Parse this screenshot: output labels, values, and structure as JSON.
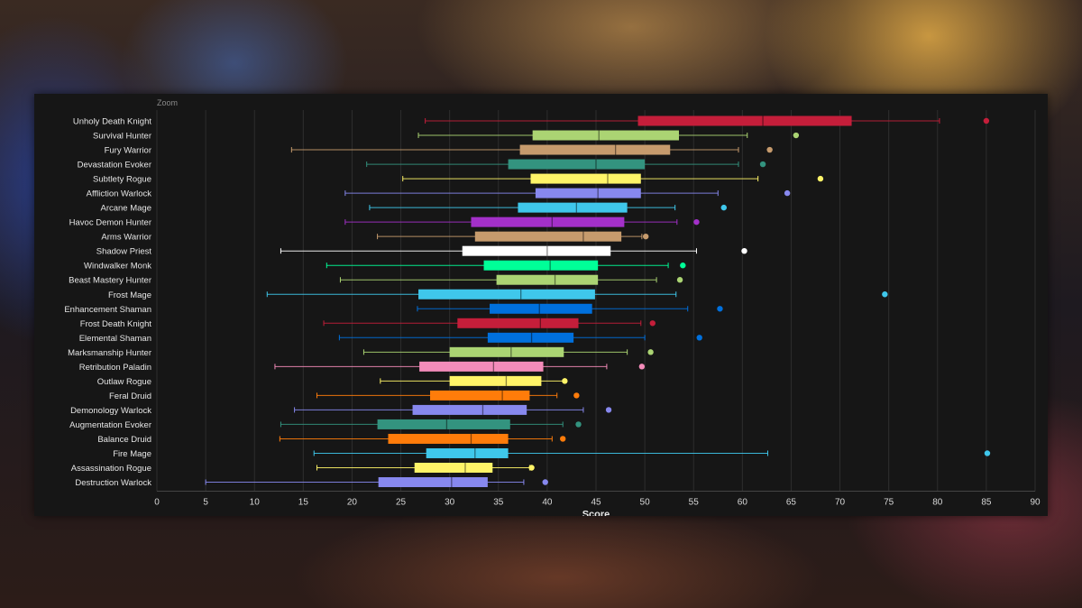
{
  "chart_data": {
    "type": "boxplot",
    "zoom_label": "Zoom",
    "xlabel": "Score",
    "xlim": [
      0,
      90
    ],
    "x_ticks": [
      0,
      5,
      10,
      15,
      20,
      25,
      30,
      35,
      40,
      45,
      50,
      55,
      60,
      65,
      70,
      75,
      80,
      85,
      90
    ],
    "grid": "vertical",
    "series": [
      {
        "label": "Unholy Death Knight",
        "color": "#c41e3a",
        "whisker_low": 27.5,
        "q1": 49.3,
        "median": 62.1,
        "q3": 71.2,
        "whisker_high": 80.2,
        "outlier": 85.0
      },
      {
        "label": "Survival Hunter",
        "color": "#abd473",
        "whisker_low": 26.8,
        "q1": 38.5,
        "median": 45.3,
        "q3": 53.5,
        "whisker_high": 60.5,
        "outlier": 65.5
      },
      {
        "label": "Fury Warrior",
        "color": "#c69b6d",
        "whisker_low": 13.8,
        "q1": 37.2,
        "median": 47.0,
        "q3": 52.6,
        "whisker_high": 59.6,
        "outlier": 62.8
      },
      {
        "label": "Devastation Evoker",
        "color": "#33937f",
        "whisker_low": 21.5,
        "q1": 36.0,
        "median": 45.0,
        "q3": 50.0,
        "whisker_high": 59.6,
        "outlier": 62.1
      },
      {
        "label": "Subtlety Rogue",
        "color": "#fff468",
        "whisker_low": 25.2,
        "q1": 38.3,
        "median": 46.2,
        "q3": 49.6,
        "whisker_high": 61.6,
        "outlier": 68.0
      },
      {
        "label": "Affliction Warlock",
        "color": "#8788ee",
        "whisker_low": 19.3,
        "q1": 38.8,
        "median": 45.2,
        "q3": 49.6,
        "whisker_high": 57.5,
        "outlier": 64.6
      },
      {
        "label": "Arcane Mage",
        "color": "#3fc7eb",
        "whisker_low": 21.8,
        "q1": 37.0,
        "median": 43.0,
        "q3": 48.2,
        "whisker_high": 53.1,
        "outlier": 58.1
      },
      {
        "label": "Havoc Demon Hunter",
        "color": "#a330c9",
        "whisker_low": 19.3,
        "q1": 32.2,
        "median": 40.5,
        "q3": 47.9,
        "whisker_high": 53.3,
        "outlier": 55.3
      },
      {
        "label": "Arms Warrior",
        "color": "#c69b6d",
        "whisker_low": 22.6,
        "q1": 32.6,
        "median": 43.7,
        "q3": 47.6,
        "whisker_high": 49.7,
        "outlier": 50.1
      },
      {
        "label": "Shadow Priest",
        "color": "#ffffff",
        "whisker_low": 12.7,
        "q1": 31.3,
        "median": 40.0,
        "q3": 46.5,
        "whisker_high": 55.3,
        "outlier": 60.2
      },
      {
        "label": "Windwalker Monk",
        "color": "#00ff98",
        "whisker_low": 17.4,
        "q1": 33.5,
        "median": 40.3,
        "q3": 45.2,
        "whisker_high": 52.4,
        "outlier": 53.9
      },
      {
        "label": "Beast Mastery Hunter",
        "color": "#abd473",
        "whisker_low": 18.8,
        "q1": 34.8,
        "median": 40.8,
        "q3": 45.2,
        "whisker_high": 51.2,
        "outlier": 53.6
      },
      {
        "label": "Frost Mage",
        "color": "#3fc7eb",
        "whisker_low": 11.3,
        "q1": 26.8,
        "median": 37.3,
        "q3": 44.9,
        "whisker_high": 53.2,
        "outlier": 74.6
      },
      {
        "label": "Enhancement Shaman",
        "color": "#0070dd",
        "whisker_low": 26.7,
        "q1": 34.1,
        "median": 39.2,
        "q3": 44.6,
        "whisker_high": 54.4,
        "outlier": 57.7
      },
      {
        "label": "Frost Death Knight",
        "color": "#c41e3a",
        "whisker_low": 17.1,
        "q1": 30.8,
        "median": 39.3,
        "q3": 43.2,
        "whisker_high": 49.6,
        "outlier": 50.8
      },
      {
        "label": "Elemental Shaman",
        "color": "#0070dd",
        "whisker_low": 18.7,
        "q1": 33.9,
        "median": 38.4,
        "q3": 42.7,
        "whisker_high": 50.0,
        "outlier": 55.6
      },
      {
        "label": "Marksmanship Hunter",
        "color": "#abd473",
        "whisker_low": 21.2,
        "q1": 30.0,
        "median": 36.3,
        "q3": 41.7,
        "whisker_high": 48.2,
        "outlier": 50.6
      },
      {
        "label": "Retribution Paladin",
        "color": "#f48cba",
        "whisker_low": 12.1,
        "q1": 26.9,
        "median": 34.5,
        "q3": 39.6,
        "whisker_high": 46.1,
        "outlier": 49.7
      },
      {
        "label": "Outlaw Rogue",
        "color": "#fff468",
        "whisker_low": 22.9,
        "q1": 30.0,
        "median": 35.8,
        "q3": 39.4,
        "whisker_high": 41.8,
        "outlier": 41.8
      },
      {
        "label": "Feral Druid",
        "color": "#ff7c0a",
        "whisker_low": 16.4,
        "q1": 28.0,
        "median": 35.4,
        "q3": 38.2,
        "whisker_high": 41.0,
        "outlier": 43.0
      },
      {
        "label": "Demonology Warlock",
        "color": "#8788ee",
        "whisker_low": 14.1,
        "q1": 26.2,
        "median": 33.4,
        "q3": 37.9,
        "whisker_high": 43.7,
        "outlier": 46.3
      },
      {
        "label": "Augmentation Evoker",
        "color": "#33937f",
        "whisker_low": 12.7,
        "q1": 22.6,
        "median": 29.7,
        "q3": 36.2,
        "whisker_high": 41.6,
        "outlier": 43.2
      },
      {
        "label": "Balance Druid",
        "color": "#ff7c0a",
        "whisker_low": 12.6,
        "q1": 23.7,
        "median": 32.2,
        "q3": 36.0,
        "whisker_high": 40.5,
        "outlier": 41.6
      },
      {
        "label": "Fire Mage",
        "color": "#3fc7eb",
        "whisker_low": 16.1,
        "q1": 27.6,
        "median": 32.6,
        "q3": 36.0,
        "whisker_high": 62.6,
        "outlier": 85.1
      },
      {
        "label": "Assassination Rogue",
        "color": "#fff468",
        "whisker_low": 16.4,
        "q1": 26.4,
        "median": 31.6,
        "q3": 34.4,
        "whisker_high": 38.2,
        "outlier": 38.4
      },
      {
        "label": "Destruction Warlock",
        "color": "#8788ee",
        "whisker_low": 5.0,
        "q1": 22.7,
        "median": 30.2,
        "q3": 33.9,
        "whisker_high": 37.6,
        "outlier": 39.8
      }
    ]
  }
}
